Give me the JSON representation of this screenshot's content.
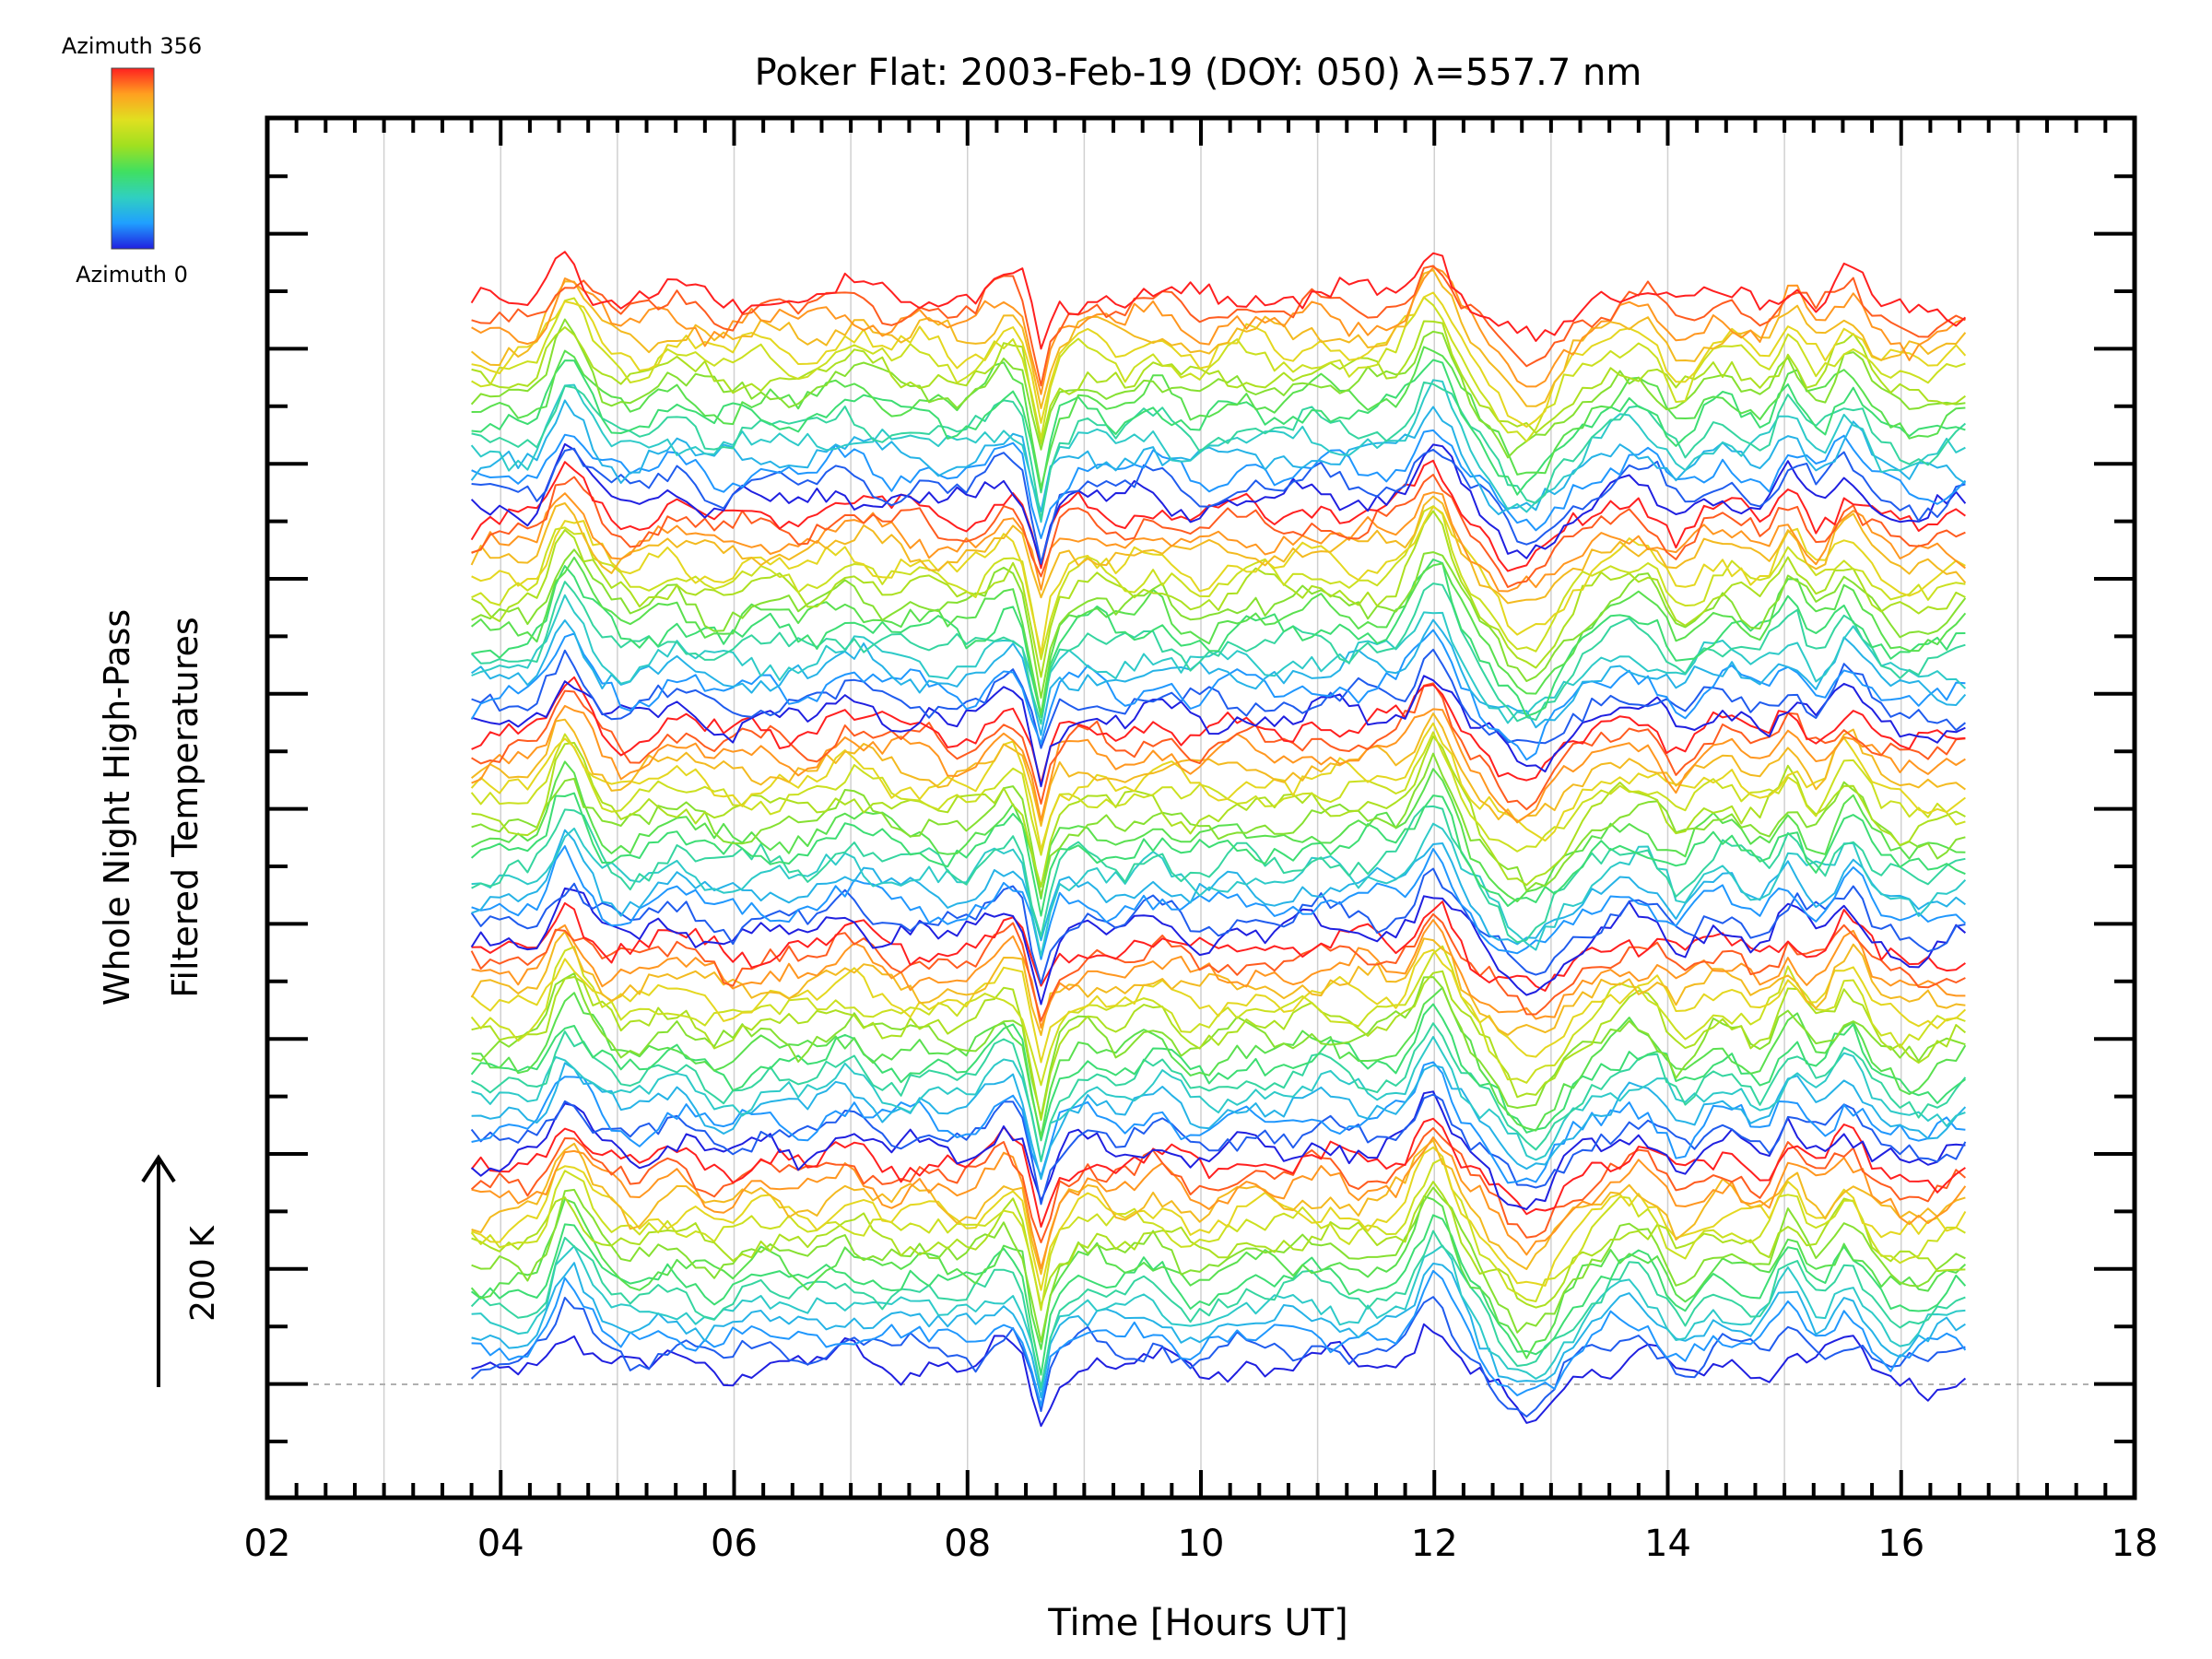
{
  "chart_data": {
    "type": "line",
    "title": "Poker Flat: 2003-Feb-19 (DOY: 050) λ=557.7 nm",
    "xlabel": "Time [Hours UT]",
    "ylabel_line1": "Whole Night High-Pass",
    "ylabel_line2": "Filtered Temperatures",
    "scale_label": "200 K",
    "xlim": [
      2,
      18
    ],
    "x_ticks": [
      "02",
      "04",
      "06",
      "08",
      "10",
      "12",
      "14",
      "16",
      "18"
    ],
    "x_data_range": [
      3.75,
      16.6
    ],
    "colorbar": {
      "top_label": "Azimuth 356",
      "bottom_label": "Azimuth 0",
      "colormap": [
        "#2020e0",
        "#20a0ff",
        "#30d0c0",
        "#40e060",
        "#a0e020",
        "#e0e020",
        "#ffa020",
        "#ff2020"
      ]
    },
    "n_series": 80,
    "grid": true,
    "events_hours": [
      4.55,
      7.0,
      8.35,
      8.62,
      9.6,
      12.0,
      12.8,
      14.1,
      15.05,
      15.55
    ],
    "colors": {
      "background": "#ffffff",
      "axes": "#000000",
      "grid": "#d0d0d0",
      "baseline": "#b0b0b0"
    }
  }
}
